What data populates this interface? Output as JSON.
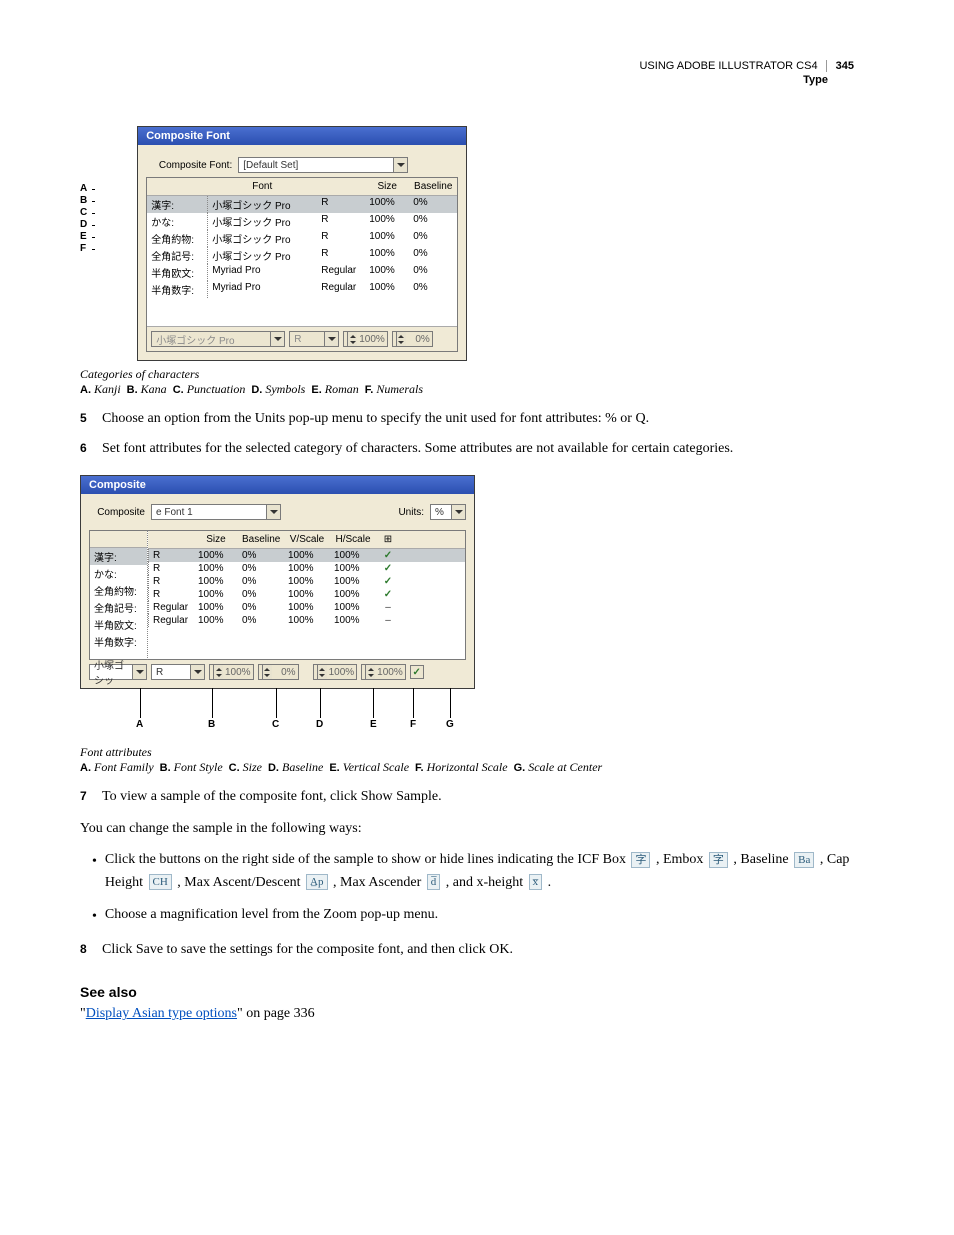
{
  "header": {
    "title": "USING ADOBE ILLUSTRATOR CS4",
    "section": "Type",
    "page": "345"
  },
  "dialog1": {
    "title": "Composite Font",
    "label_compositeFont": "Composite Font:",
    "combo_value": "[Default Set]",
    "head_font": "Font",
    "head_size": "Size",
    "head_baseline": "Baseline",
    "rows": [
      {
        "cat": "漢字:",
        "font": "小塚ゴシック Pro",
        "style": "R",
        "size": "100%",
        "base": "0%"
      },
      {
        "cat": "かな:",
        "font": "小塚ゴシック Pro",
        "style": "R",
        "size": "100%",
        "base": "0%"
      },
      {
        "cat": "全角約物:",
        "font": "小塚ゴシック Pro",
        "style": "R",
        "size": "100%",
        "base": "0%"
      },
      {
        "cat": "全角記号:",
        "font": "小塚ゴシック Pro",
        "style": "R",
        "size": "100%",
        "base": "0%"
      },
      {
        "cat": "半角欧文:",
        "font": "Myriad Pro",
        "style": "Regular",
        "size": "100%",
        "base": "0%"
      },
      {
        "cat": "半角数字:",
        "font": "Myriad Pro",
        "style": "Regular",
        "size": "100%",
        "base": "0%"
      }
    ],
    "bottom_font": "小塚ゴシック Pro",
    "bottom_style": "R",
    "bottom_size": "100%",
    "bottom_base": "0%",
    "side_letters": [
      "A",
      "B",
      "C",
      "D",
      "E",
      "F"
    ]
  },
  "caption1": {
    "title": "Categories of characters",
    "key_parts": [
      {
        "l": "A.",
        "t": "Kanji"
      },
      {
        "l": "B.",
        "t": "Kana"
      },
      {
        "l": "C.",
        "t": "Punctuation"
      },
      {
        "l": "D.",
        "t": "Symbols"
      },
      {
        "l": "E.",
        "t": "Roman"
      },
      {
        "l": "F.",
        "t": "Numerals"
      }
    ]
  },
  "step5": {
    "num": "5",
    "text": "Choose an option from the Units pop-up menu to specify the unit used for font attributes: % or Q."
  },
  "step6": {
    "num": "6",
    "text": "Set font attributes for the selected category of characters. Some attributes are not available for certain categories."
  },
  "dialog2": {
    "title": "Composite",
    "label_composite": "Composite",
    "combo_value": "e Font 1",
    "label_units": "Units:",
    "units_value": "%",
    "head_size": "Size",
    "head_baseline": "Baseline",
    "head_vscale": "V/Scale",
    "head_hscale": "H/Scale",
    "left_rows": [
      "漢字:",
      "かな:",
      "全角約物:",
      "全角記号:",
      "半角欧文:",
      "半角数字:"
    ],
    "rows": [
      {
        "style": "R",
        "size": "100%",
        "base": "0%",
        "v": "100%",
        "h": "100%",
        "chk": "✓"
      },
      {
        "style": "R",
        "size": "100%",
        "base": "0%",
        "v": "100%",
        "h": "100%",
        "chk": "✓"
      },
      {
        "style": "R",
        "size": "100%",
        "base": "0%",
        "v": "100%",
        "h": "100%",
        "chk": "✓"
      },
      {
        "style": "R",
        "size": "100%",
        "base": "0%",
        "v": "100%",
        "h": "100%",
        "chk": "✓"
      },
      {
        "style": "Regular",
        "size": "100%",
        "base": "0%",
        "v": "100%",
        "h": "100%",
        "chk": "–"
      },
      {
        "style": "Regular",
        "size": "100%",
        "base": "0%",
        "v": "100%",
        "h": "100%",
        "chk": "–"
      }
    ],
    "bottom_font": "小塚ゴシッ",
    "bottom_style": "R",
    "bottom_size": "100%",
    "bottom_base": "0%",
    "bottom_v": "100%",
    "bottom_h": "100%",
    "callouts": [
      "A",
      "B",
      "C",
      "D",
      "E",
      "F",
      "G"
    ]
  },
  "caption2": {
    "title": "Font attributes",
    "key_parts": [
      {
        "l": "A.",
        "t": "Font Family"
      },
      {
        "l": "B.",
        "t": "Font Style"
      },
      {
        "l": "C.",
        "t": "Size"
      },
      {
        "l": "D.",
        "t": "Baseline"
      },
      {
        "l": "E.",
        "t": "Vertical Scale"
      },
      {
        "l": "F.",
        "t": "Horizontal Scale"
      },
      {
        "l": "G.",
        "t": "Scale at Center"
      }
    ]
  },
  "step7": {
    "num": "7",
    "text": "To view a sample of the composite font, click Show Sample."
  },
  "body1": "You can change the sample in the following ways:",
  "bullet1": {
    "pre": "Click the buttons on the right side of the sample to show or hide lines indicating the ICF Box ",
    "icf": "字",
    "mid1": ", Embox ",
    "embox": "字",
    "mid1b": ", Baseline ",
    "baseline": "Ba",
    "mid2": ", Cap Height ",
    "cap": "CH",
    "mid3": ", Max Ascent/Descent ",
    "ad": "A̲p",
    "mid4": ", Max Ascender ",
    "asc": "d̅",
    "mid5": ", and x-height ",
    "xh": "x̅",
    "end": "."
  },
  "bullet2": "Choose a magnification level from the Zoom pop-up menu.",
  "step8": {
    "num": "8",
    "text": "Click Save to save the settings for the composite font, and then click OK."
  },
  "seealso": {
    "heading": "See also",
    "q1": "\"",
    "link": "Display Asian type options",
    "q2": "\" on page 336"
  }
}
